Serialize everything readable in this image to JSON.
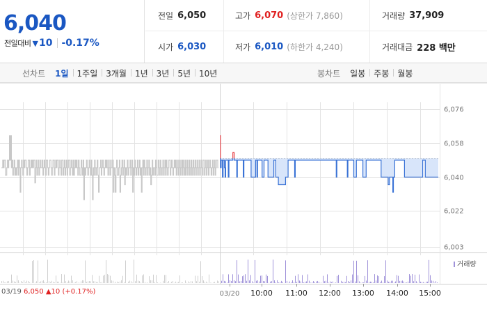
{
  "quote": {
    "price": "6,040",
    "change_label": "전일대비",
    "change_arrow": "▼",
    "change_amount": "10",
    "change_pct": "-0.17%",
    "prev_close": {
      "label": "전일",
      "value": "6,050"
    },
    "open": {
      "label": "시가",
      "value": "6,030"
    },
    "high": {
      "label": "고가",
      "value": "6,070",
      "sub": "(상한가 7,860)"
    },
    "low": {
      "label": "저가",
      "value": "6,010",
      "sub": "(하한가 4,240)"
    },
    "volume": {
      "label": "거래량",
      "value": "37,909"
    },
    "amount": {
      "label": "거래대금",
      "value": "228 백만"
    }
  },
  "toolbar": {
    "line_title": "선차트",
    "line_periods": [
      "1일",
      "1주일",
      "3개월",
      "1년",
      "3년",
      "5년",
      "10년"
    ],
    "candle_title": "봉차트",
    "candle_periods": [
      "일봉",
      "주봉",
      "월봉"
    ]
  },
  "chart_data": {
    "type": "line",
    "y_ticks": [
      "6,076",
      "6,058",
      "6,040",
      "6,022",
      "6,003"
    ],
    "y_tick_values": [
      6076,
      6058,
      6040,
      6022,
      6003
    ],
    "ylim": [
      6003,
      6076
    ],
    "x_labels": [
      "03/20",
      "10:00",
      "11:00",
      "12:00",
      "13:00",
      "14:00",
      "15:00"
    ],
    "prev_day_label": "03/19",
    "prev_close_ref": 6050,
    "volume_legend": "거래량",
    "prev_day_info": {
      "price": "6,050",
      "change": "▲10",
      "pct": "(+0.17%)"
    },
    "grid": true,
    "colors": {
      "prev": "#c8c8c8",
      "today": "#3a73d6",
      "fill": "#d8e5fa",
      "up": "#e8474d",
      "volume": "#9f92d9",
      "grid": "#e3e3e3"
    },
    "series": [
      {
        "day": "03/19",
        "values": [
          6045,
          6045,
          6049,
          6045,
          6049,
          6049,
          6041,
          6041,
          6045,
          6049,
          6045,
          6049,
          6062,
          6049,
          6062,
          6045,
          6049,
          6041,
          6045,
          6049,
          6041,
          6045,
          6041,
          6045,
          6049,
          6041,
          6049,
          6045,
          6032,
          6045,
          6049,
          6045,
          6041,
          6049,
          6045,
          6049,
          6049,
          6045,
          6041,
          6045,
          6049,
          6049,
          6041,
          6045,
          6049,
          6045,
          6049,
          6045,
          6049,
          6049,
          6037,
          6045,
          6049,
          6041,
          6045,
          6049,
          6041,
          6045,
          6049,
          6045,
          6045,
          6049,
          6041,
          6045,
          6049,
          6045,
          6041,
          6049,
          6049,
          6045,
          6041,
          6045,
          6049,
          6049,
          6045,
          6041,
          6045,
          6049,
          6049,
          6041,
          6045,
          6049,
          6045,
          6049,
          6049,
          6041,
          6045,
          6049,
          6045,
          6041,
          6049,
          6049,
          6041,
          6045,
          6049,
          6041,
          6045,
          6049,
          6041,
          6045,
          6049,
          6049,
          6041,
          6045,
          6049,
          6045,
          6041,
          6049,
          6041,
          6045,
          6049,
          6045,
          6049,
          6045,
          6041,
          6049,
          6045,
          6041,
          6041,
          6049,
          6045,
          6041,
          6049,
          6028,
          6045,
          6041,
          6045,
          6049,
          6045,
          6041,
          6045,
          6049,
          6045,
          6041,
          6049,
          6041,
          6028,
          6045,
          6041,
          6049,
          6045,
          6041,
          6045,
          6049,
          6041,
          6032,
          6045,
          6045,
          6049,
          6041,
          6045,
          6049,
          6045,
          6041,
          6045,
          6049,
          6045,
          6049,
          6045,
          6041,
          6049,
          6045,
          6041,
          6049,
          6045,
          6045,
          6049,
          6032,
          6045,
          6041,
          6032,
          6045,
          6049,
          6041,
          6041,
          6045,
          6049,
          6032,
          6041,
          6045,
          6049,
          6041,
          6045,
          6049,
          6036,
          6045,
          6041,
          6045,
          6049,
          6041,
          6045,
          6045,
          6049,
          6041,
          6045,
          6049,
          6032,
          6045,
          6041,
          6049,
          6045,
          6041,
          6045,
          6049,
          6041,
          6045,
          6049,
          6041,
          6045,
          6032,
          6045,
          6049,
          6041,
          6049,
          6045,
          6041,
          6045,
          6049,
          6041,
          6045,
          6049,
          6041,
          6045,
          6036,
          6041,
          6049,
          6041,
          6045,
          6045,
          6041,
          6049,
          6045,
          6041,
          6041,
          6049,
          6045,
          6041,
          6049,
          6045,
          6041,
          6045,
          6049,
          6041,
          6045,
          6049,
          6041,
          6049,
          6045,
          6041,
          6045,
          6049,
          6049,
          6041,
          6045,
          6049,
          6045,
          6041,
          6045,
          6049,
          6045,
          6049,
          6041,
          6045,
          6049,
          6041,
          6045,
          6049,
          6041,
          6045,
          6049,
          6041,
          6049,
          6045,
          6041,
          6049,
          6041,
          6045,
          6049,
          6041,
          6045,
          6049,
          6041,
          6045,
          6049,
          6041,
          6045,
          6049,
          6041,
          6045,
          6049,
          6041,
          6045,
          6049,
          6041,
          6045,
          6049,
          6041,
          6045,
          6049,
          6045,
          6041,
          6049,
          6049,
          6041,
          6045,
          6049,
          6041,
          6045,
          6049,
          6041,
          6045,
          6049,
          6045,
          6041,
          6045,
          6049,
          6041,
          6045,
          6049,
          6041,
          6045,
          6049,
          6049,
          6045
        ]
      },
      {
        "day": "03/20",
        "values": [
          6062,
          6045,
          6049,
          6049,
          6040,
          6049,
          6049,
          6045,
          6040,
          6049,
          6049,
          6049,
          6049,
          6040,
          6049,
          6049,
          6049,
          6049,
          6049,
          6049,
          6053,
          6053,
          6049,
          6049,
          6049,
          6049,
          6040,
          6049,
          6049,
          6049,
          6049,
          6049,
          6049,
          6049,
          6049,
          6049,
          6040,
          6049,
          6049,
          6049,
          6049,
          6049,
          6049,
          6049,
          6049,
          6049,
          6049,
          6049,
          6040,
          6040,
          6040,
          6040,
          6040,
          6040,
          6040,
          6049,
          6049,
          6040,
          6049,
          6049,
          6049,
          6049,
          6049,
          6049,
          6049,
          6040,
          6040,
          6040,
          6049,
          6049,
          6049,
          6049,
          6049,
          6049,
          6040,
          6040,
          6040,
          6040,
          6040,
          6040,
          6040,
          6040,
          6040,
          6049,
          6049,
          6049,
          6040,
          6040,
          6040,
          6040,
          6036,
          6036,
          6036,
          6036,
          6036,
          6036,
          6036,
          6036,
          6036,
          6036,
          6036,
          6040,
          6040,
          6040,
          6040,
          6049,
          6049,
          6049,
          6049,
          6049,
          6049,
          6049,
          6049,
          6049,
          6049,
          6040,
          6049,
          6049,
          6049,
          6049,
          6049,
          6049,
          6049,
          6049,
          6049,
          6049,
          6049,
          6049,
          6049,
          6049,
          6049,
          6049,
          6049,
          6049,
          6049,
          6049,
          6049,
          6049,
          6049,
          6049,
          6049,
          6049,
          6049,
          6049,
          6049,
          6049,
          6049,
          6049,
          6049,
          6049,
          6049,
          6049,
          6049,
          6049,
          6049,
          6049,
          6049,
          6049,
          6049,
          6049,
          6049,
          6049,
          6049,
          6049,
          6049,
          6049,
          6049,
          6049,
          6049,
          6049,
          6049,
          6049,
          6049,
          6049,
          6049,
          6049,
          6049,
          6049,
          6049,
          6040,
          6049,
          6049,
          6049,
          6049,
          6049,
          6049,
          6049,
          6049,
          6049,
          6049,
          6049,
          6049,
          6049,
          6049,
          6049,
          6049,
          6040,
          6049,
          6049,
          6049,
          6049,
          6049,
          6049,
          6049,
          6049,
          6049,
          6040,
          6040,
          6040,
          6040,
          6049,
          6049,
          6049,
          6049,
          6049,
          6049,
          6049,
          6049,
          6049,
          6049,
          6040,
          6040,
          6040,
          6040,
          6040,
          6049,
          6049,
          6049,
          6049,
          6049,
          6049,
          6049,
          6049,
          6049,
          6049,
          6049,
          6049,
          6049,
          6049,
          6049,
          6049,
          6049,
          6049,
          6049,
          6049,
          6049,
          6049,
          6049,
          6040,
          6040,
          6040,
          6040,
          6040,
          6040,
          6040,
          6040,
          6040,
          6040,
          6040,
          6036,
          6036,
          6040,
          6040,
          6040,
          6040,
          6040,
          6032,
          6040,
          6040,
          6049,
          6049,
          6049,
          6049,
          6049,
          6049,
          6049,
          6049,
          6049,
          6049,
          6049,
          6049,
          6049,
          6049,
          6049,
          6040,
          6040,
          6040,
          6040,
          6040,
          6040,
          6040,
          6040,
          6040,
          6040,
          6040,
          6040,
          6040,
          6040,
          6040,
          6040,
          6040,
          6040,
          6040,
          6040,
          6040,
          6040,
          6040,
          6040,
          6040,
          6040,
          6040,
          6040,
          6049,
          6049,
          6049,
          6049,
          6040,
          6040,
          6040,
          6040,
          6040,
          6040,
          6040,
          6040,
          6040,
          6040,
          6040,
          6040,
          6040,
          6040,
          6040,
          6040,
          6040,
          6040,
          6040,
          6040
        ]
      }
    ]
  }
}
